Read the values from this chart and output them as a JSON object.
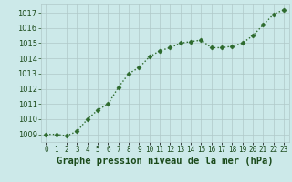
{
  "x": [
    0,
    1,
    2,
    3,
    4,
    5,
    6,
    7,
    8,
    9,
    10,
    11,
    12,
    13,
    14,
    15,
    16,
    17,
    18,
    19,
    20,
    21,
    22,
    23
  ],
  "y": [
    1009.0,
    1009.0,
    1008.9,
    1009.2,
    1010.0,
    1010.6,
    1011.0,
    1012.1,
    1013.0,
    1013.4,
    1014.1,
    1014.5,
    1014.7,
    1015.0,
    1015.1,
    1015.2,
    1014.7,
    1014.7,
    1014.8,
    1015.0,
    1015.5,
    1016.2,
    1016.9,
    1017.2
  ],
  "line_color": "#2d6a2d",
  "marker": "D",
  "marker_size": 2.5,
  "line_width": 1.0,
  "bg_color": "#cce9e9",
  "grid_color": "#b0c8c8",
  "ylim": [
    1008.5,
    1017.6
  ],
  "xlim": [
    -0.5,
    23.5
  ],
  "yticks": [
    1009,
    1010,
    1011,
    1012,
    1013,
    1014,
    1015,
    1016,
    1017
  ],
  "xtick_labels": [
    "0",
    "1",
    "2",
    "3",
    "4",
    "5",
    "6",
    "7",
    "8",
    "9",
    "10",
    "11",
    "12",
    "13",
    "14",
    "15",
    "16",
    "17",
    "18",
    "19",
    "20",
    "21",
    "22",
    "23"
  ],
  "xlabel": "Graphe pression niveau de la mer (hPa)",
  "xlabel_color": "#1a4a1a",
  "tick_color": "#1a4a1a",
  "xlabel_fontsize": 7.5,
  "ytick_fontsize": 6,
  "xtick_fontsize": 5.5
}
